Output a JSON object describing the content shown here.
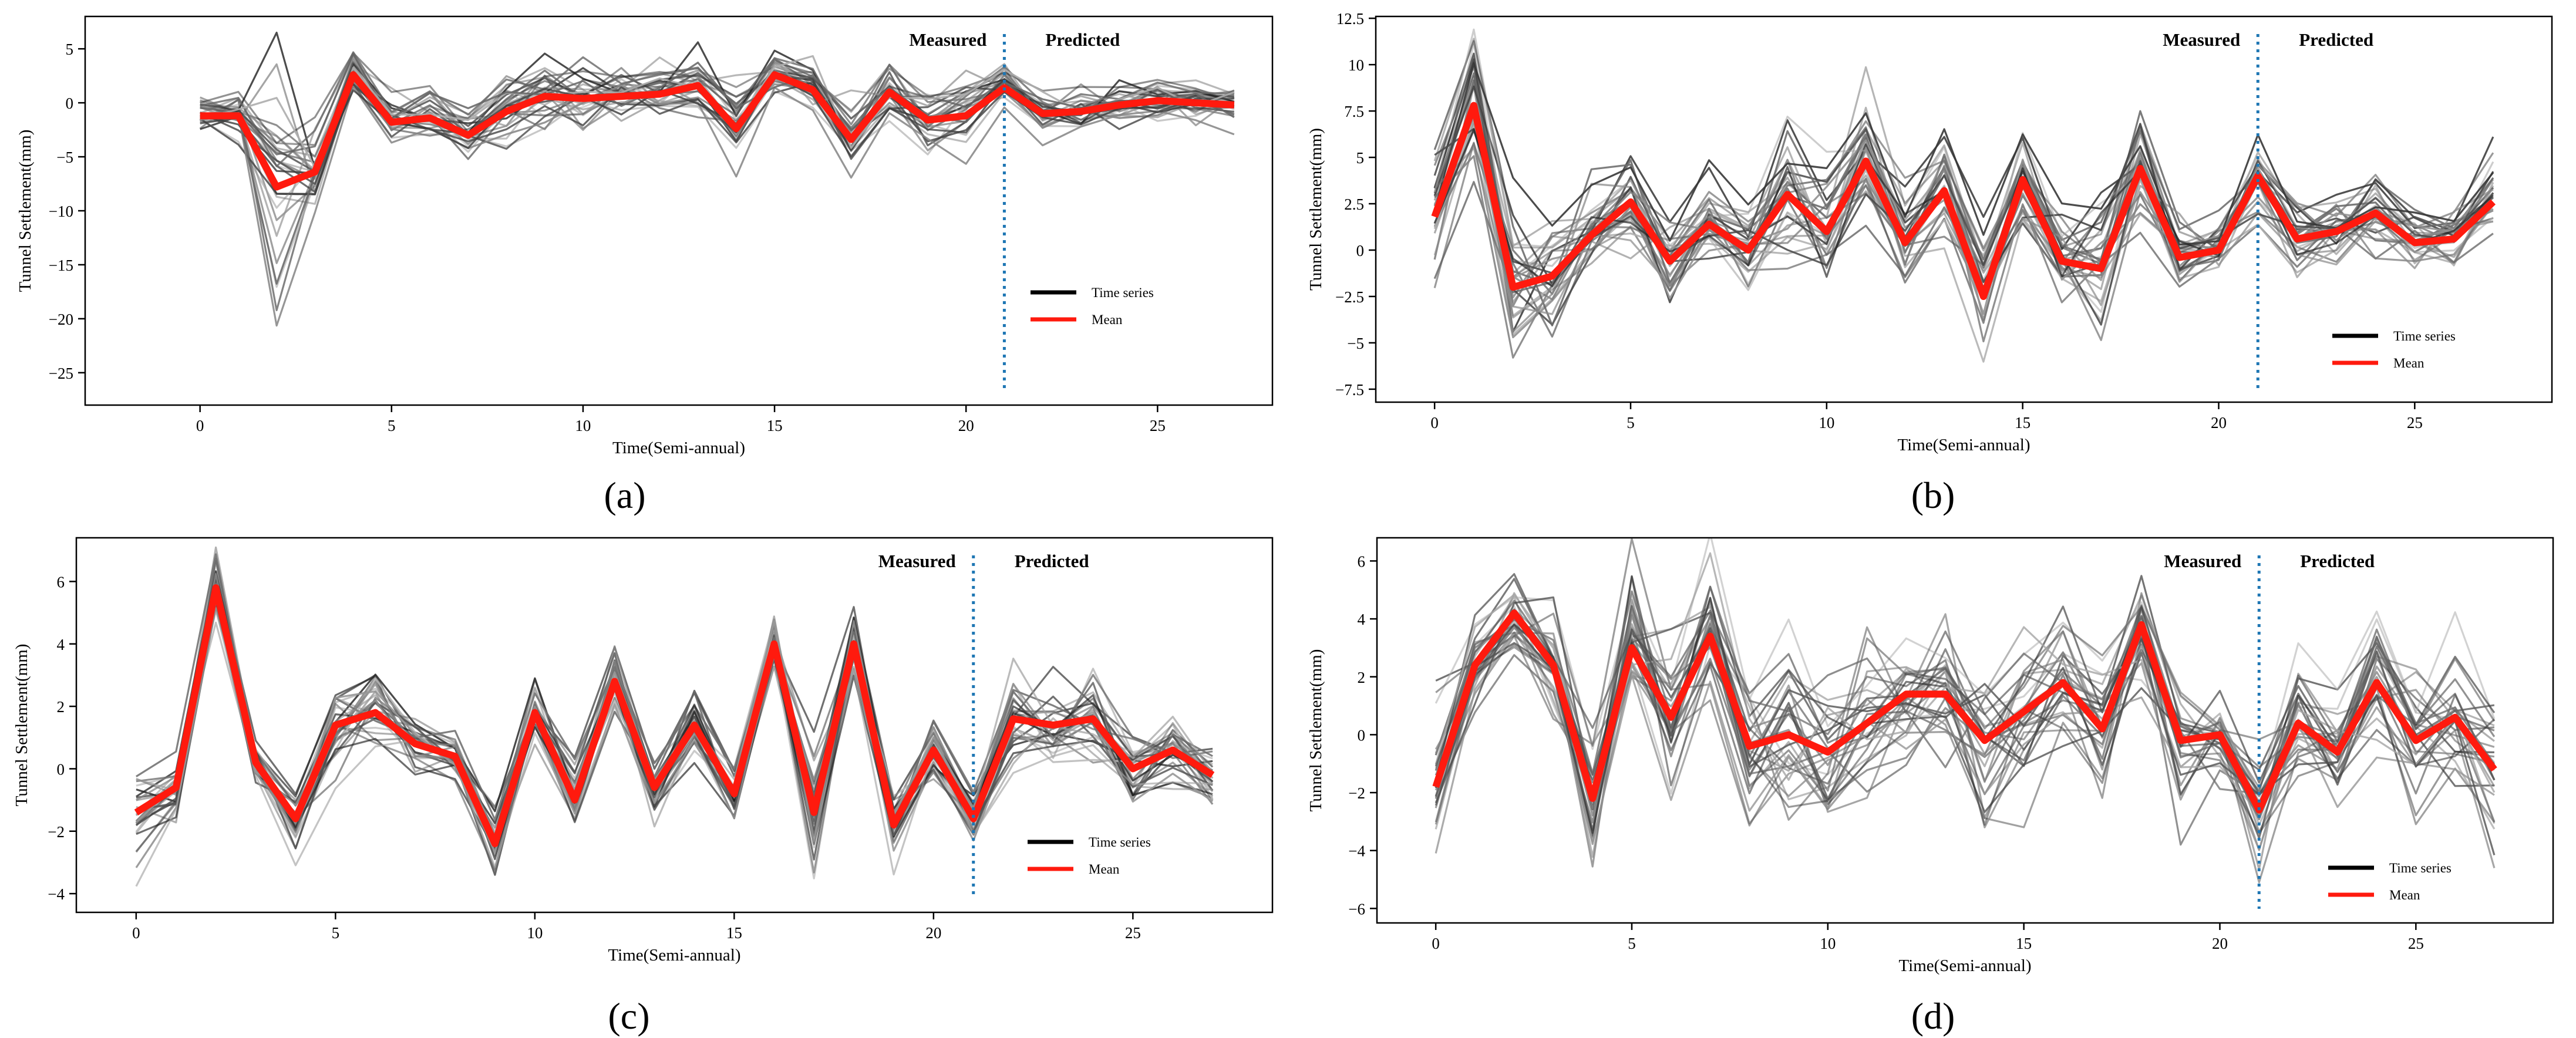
{
  "chart_data": [
    {
      "type": "line",
      "panel": "(a)",
      "xlabel": "Time(Semi-annual)",
      "ylabel": "Tunnel Settlement(mm)",
      "xlim": [
        -3,
        28
      ],
      "ylim": [
        -28,
        8
      ],
      "xticks": [
        0,
        5,
        10,
        15,
        20,
        25
      ],
      "yticks": [
        5,
        0,
        -5,
        -10,
        -15,
        -20,
        -25
      ],
      "divider_x": 21,
      "measured_label": "Measured",
      "predicted_label": "Predicted",
      "legend": [
        "Time series",
        "Mean"
      ],
      "legend_position": "bottom-right",
      "mean": [
        -1.2,
        -1.2,
        -7.8,
        -6.4,
        2.6,
        -1.8,
        -1.4,
        -3.0,
        -0.8,
        0.6,
        0.4,
        0.6,
        0.8,
        1.6,
        -2.4,
        2.6,
        1.2,
        -3.4,
        1.0,
        -1.6,
        -1.2,
        1.4,
        -1.0,
        -0.8,
        -0.2,
        0.2,
        0.0,
        -0.2
      ],
      "n_series": 30,
      "series_spread": [
        1.2,
        1.8,
        8.0,
        3.5,
        1.6,
        2.0,
        2.0,
        2.4,
        2.5,
        2.2,
        2.4,
        1.8,
        1.8,
        2.0,
        2.6,
        2.0,
        2.0,
        2.4,
        2.4,
        2.0,
        2.2,
        1.8,
        1.6,
        1.6,
        1.5,
        1.5,
        1.4,
        1.3
      ],
      "seed": 11
    },
    {
      "type": "line",
      "panel": "(b)",
      "xlabel": "Time(Semi-annual)",
      "ylabel": "Tunnel Settlement(mm)",
      "xlim": [
        -1.5,
        28.5
      ],
      "ylim": [
        -8.2,
        12.6
      ],
      "xticks": [
        0,
        5,
        10,
        15,
        20,
        25
      ],
      "yticks": [
        12.5,
        10.0,
        7.5,
        5.0,
        2.5,
        0.0,
        -2.5,
        -5.0,
        -7.5
      ],
      "divider_x": 21,
      "measured_label": "Measured",
      "predicted_label": "Predicted",
      "legend": [
        "Time series",
        "Mean"
      ],
      "legend_position": "bottom-right",
      "mean": [
        1.8,
        7.8,
        -2.0,
        -1.4,
        0.8,
        2.6,
        -0.6,
        1.4,
        0.0,
        3.0,
        1.0,
        4.8,
        0.4,
        3.2,
        -2.5,
        3.8,
        -0.6,
        -1.0,
        4.4,
        -0.4,
        0.0,
        4.0,
        0.6,
        1.0,
        2.0,
        0.4,
        0.6,
        2.6
      ],
      "n_series": 30,
      "series_spread": [
        3.0,
        3.5,
        3.0,
        2.5,
        2.0,
        2.0,
        1.8,
        1.6,
        1.8,
        3.0,
        2.5,
        2.5,
        2.2,
        2.4,
        2.2,
        2.2,
        2.0,
        2.4,
        2.2,
        1.8,
        1.6,
        2.0,
        1.6,
        1.4,
        1.6,
        1.5,
        1.4,
        1.8
      ],
      "seed": 23
    },
    {
      "type": "line",
      "panel": "(c)",
      "xlabel": "Time(Semi-annual)",
      "ylabel": "Tunnel Settlement(mm)",
      "xlim": [
        -1.5,
        28.5
      ],
      "ylim": [
        -4.6,
        7.4
      ],
      "xticks": [
        0,
        5,
        10,
        15,
        20,
        25
      ],
      "yticks": [
        6,
        4,
        2,
        0,
        -2,
        -4
      ],
      "divider_x": 21,
      "measured_label": "Measured",
      "predicted_label": "Predicted",
      "legend": [
        "Time series",
        "Mean"
      ],
      "legend_position": "bottom-right",
      "mean": [
        -1.4,
        -0.6,
        5.8,
        0.2,
        -1.6,
        1.4,
        1.8,
        0.8,
        0.4,
        -2.4,
        1.8,
        -1.0,
        2.8,
        -0.6,
        1.4,
        -0.8,
        4.0,
        -1.4,
        4.0,
        -1.8,
        0.6,
        -1.6,
        1.6,
        1.4,
        1.6,
        0.0,
        0.6,
        -0.2
      ],
      "n_series": 30,
      "series_spread": [
        1.4,
        0.8,
        1.0,
        0.6,
        0.8,
        1.2,
        1.0,
        1.0,
        0.8,
        0.8,
        0.8,
        0.8,
        0.8,
        0.8,
        0.8,
        0.8,
        0.8,
        1.6,
        0.8,
        1.0,
        0.8,
        0.8,
        1.4,
        1.2,
        1.2,
        1.0,
        0.8,
        0.9
      ],
      "seed": 37
    },
    {
      "type": "line",
      "panel": "(d)",
      "xlabel": "Time(Semi-annual)",
      "ylabel": "Tunnel Settlement(mm)",
      "xlim": [
        -1.5,
        28.5
      ],
      "ylim": [
        -6.5,
        6.8
      ],
      "xticks": [
        0,
        5,
        10,
        15,
        20,
        25
      ],
      "yticks": [
        6,
        4,
        2,
        0,
        -2,
        -4,
        -6
      ],
      "divider_x": 21,
      "measured_label": "Measured",
      "predicted_label": "Predicted",
      "legend": [
        "Time series",
        "Mean"
      ],
      "legend_position": "bottom-right",
      "mean": [
        -1.8,
        2.4,
        4.2,
        2.4,
        -2.2,
        3.0,
        0.6,
        3.4,
        -0.4,
        0.0,
        -0.6,
        0.4,
        1.4,
        1.4,
        -0.2,
        0.8,
        1.8,
        0.2,
        3.8,
        -0.2,
        0.0,
        -2.6,
        0.4,
        -0.6,
        1.8,
        -0.2,
        0.6,
        -1.2
      ],
      "n_series": 30,
      "series_spread": [
        2.4,
        1.2,
        1.2,
        1.6,
        1.8,
        2.2,
        2.0,
        2.0,
        2.2,
        2.6,
        2.2,
        2.4,
        2.2,
        2.2,
        2.2,
        2.2,
        2.2,
        2.2,
        1.8,
        1.8,
        1.4,
        1.6,
        1.6,
        1.6,
        1.8,
        1.8,
        1.8,
        2.0
      ],
      "seed": 53
    }
  ]
}
